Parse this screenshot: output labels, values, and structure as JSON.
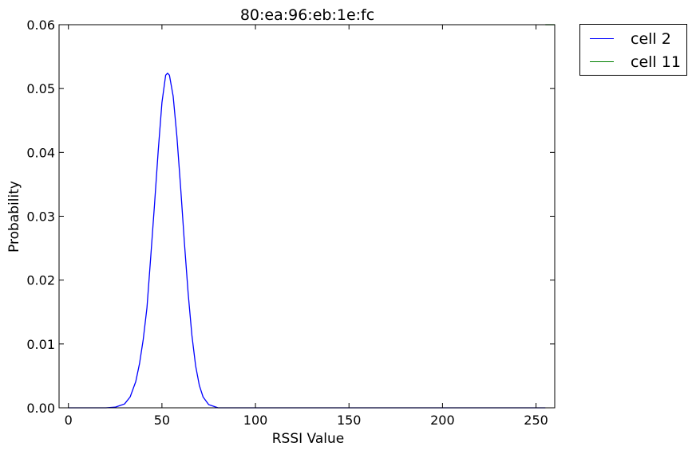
{
  "chart_data": {
    "type": "line",
    "title": "80:ea:96:eb:1e:fc",
    "xlabel": "RSSI Value",
    "ylabel": "Probability",
    "xlim": [
      -5,
      260
    ],
    "ylim": [
      0,
      0.06
    ],
    "xticks": [
      0,
      50,
      100,
      150,
      200,
      250
    ],
    "xtick_labels": [
      "0",
      "50",
      "100",
      "150",
      "200",
      "250"
    ],
    "yticks": [
      0.0,
      0.01,
      0.02,
      0.03,
      0.04,
      0.05,
      0.06
    ],
    "ytick_labels": [
      "0.00",
      "0.01",
      "0.02",
      "0.03",
      "0.04",
      "0.05",
      "0.06"
    ],
    "grid": false,
    "legend_position": "outside-top-right",
    "series": [
      {
        "name": "cell 2",
        "color": "#0000ff",
        "x": [
          0,
          20,
          25,
          30,
          33,
          36,
          38,
          40,
          42,
          44,
          46,
          48,
          50,
          52,
          53,
          54,
          56,
          58,
          60,
          62,
          64,
          66,
          68,
          70,
          72,
          75,
          80,
          90,
          255
        ],
        "y": [
          0,
          0.0,
          0.0001,
          0.0006,
          0.0017,
          0.0041,
          0.0069,
          0.0107,
          0.0157,
          0.0236,
          0.0317,
          0.0402,
          0.0478,
          0.0521,
          0.0524,
          0.0521,
          0.0488,
          0.0425,
          0.0345,
          0.0259,
          0.018,
          0.0114,
          0.0066,
          0.0035,
          0.0017,
          0.0005,
          0.0,
          0.0,
          0.0
        ]
      },
      {
        "name": "cell 11",
        "color": "#008000",
        "x": [
          255,
          260
        ],
        "y": [
          0.06,
          0.06
        ]
      }
    ]
  }
}
